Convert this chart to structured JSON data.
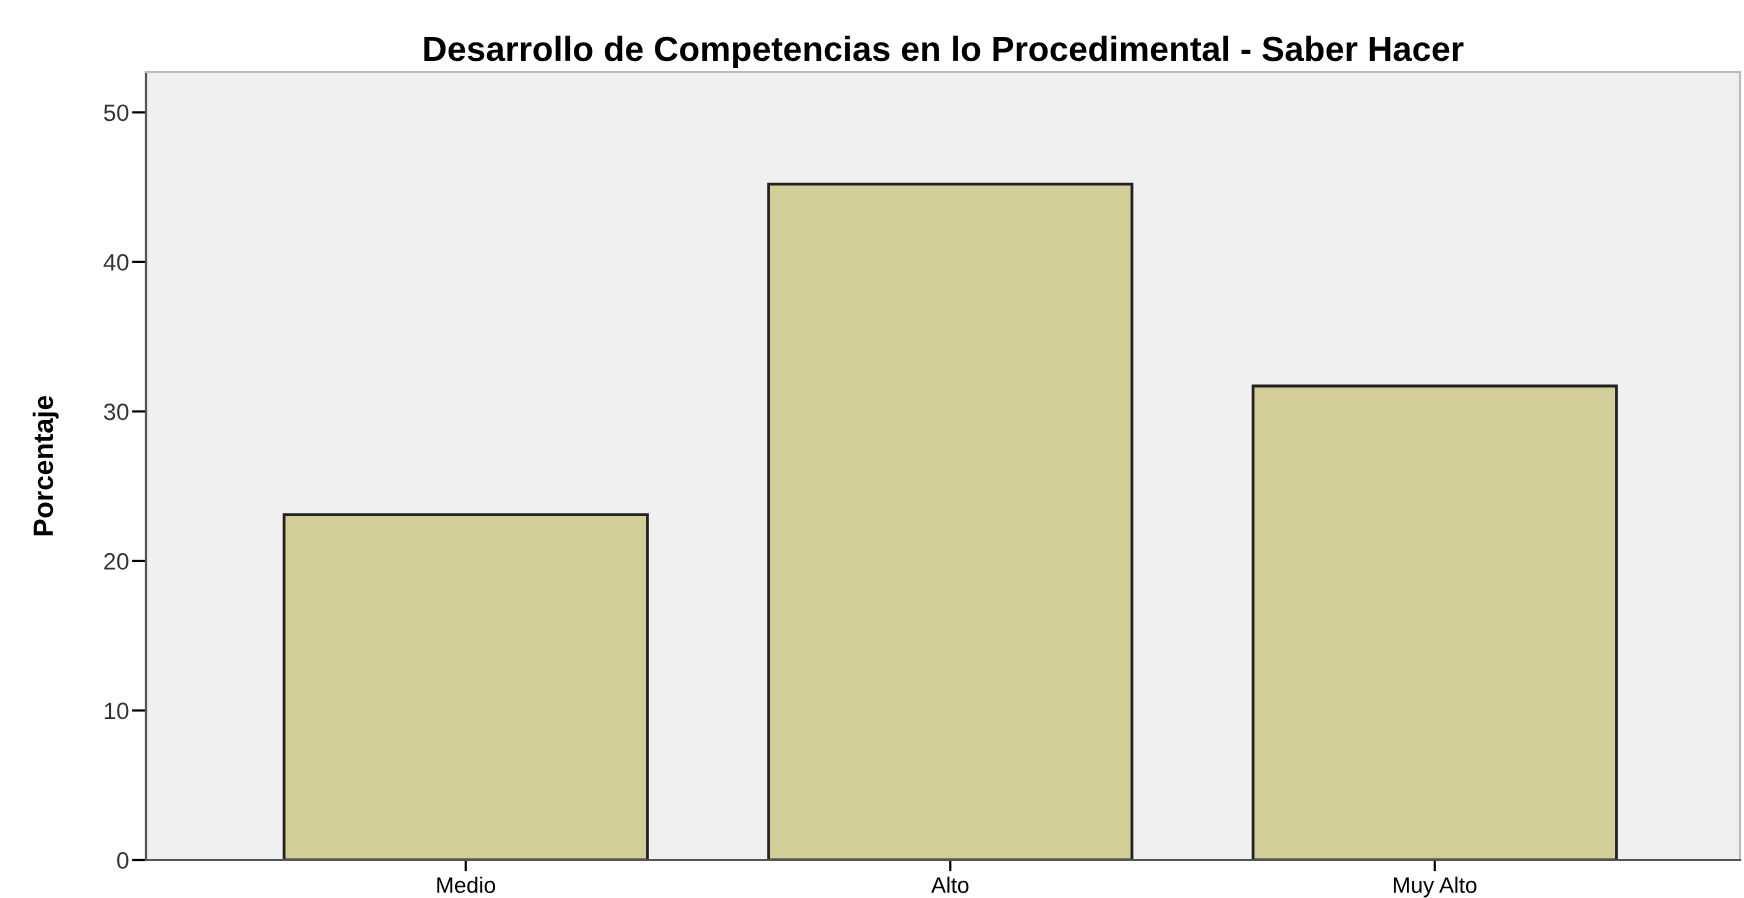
{
  "chart_data": {
    "type": "bar",
    "title": "Desarrollo de Competencias en lo Procedimental - Saber Hacer",
    "ylabel": "Porcentaje",
    "categories": [
      "Medio",
      "Alto",
      "Muy Alto"
    ],
    "values": [
      23.1,
      45.2,
      31.7
    ],
    "color": "#d3cd97",
    "ylim": [
      0,
      52.7
    ],
    "yticks": [
      0,
      10,
      20,
      30,
      40,
      50
    ],
    "grid": false
  }
}
